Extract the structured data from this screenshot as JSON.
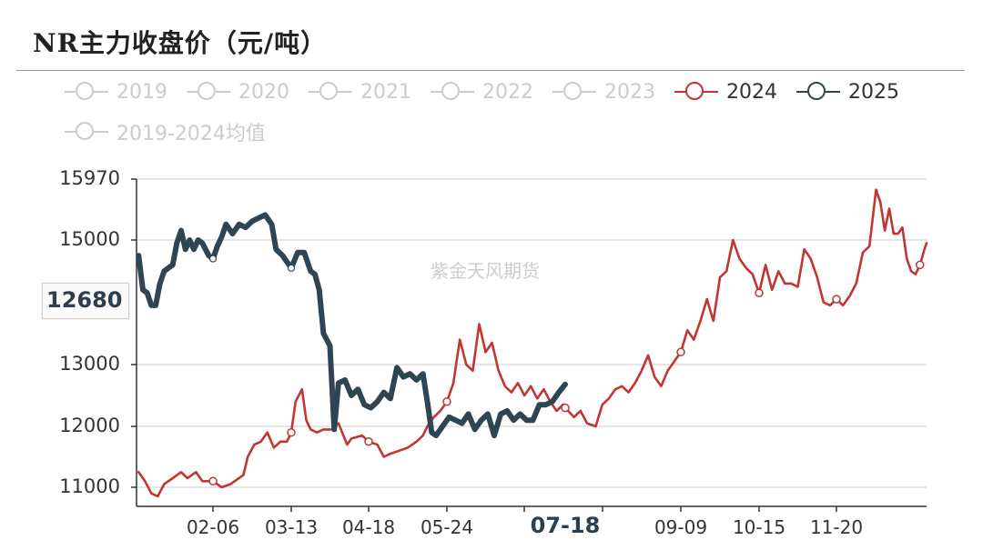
{
  "title": "NR主力收盘价（元/吨）",
  "watermark": "紫金天风期货",
  "y_pointer_label": "12680",
  "legend": [
    {
      "name": "2019",
      "color": "#cccccc",
      "active": false
    },
    {
      "name": "2020",
      "color": "#cccccc",
      "active": false
    },
    {
      "name": "2021",
      "color": "#cccccc",
      "active": false
    },
    {
      "name": "2022",
      "color": "#cccccc",
      "active": false
    },
    {
      "name": "2023",
      "color": "#cccccc",
      "active": false
    },
    {
      "name": "2024",
      "color": "#c23531",
      "active": true
    },
    {
      "name": "2025",
      "color": "#2f4554",
      "active": true
    },
    {
      "name": "2019-2024均值",
      "color": "#cccccc",
      "active": false
    }
  ],
  "y_ticks": [
    "15970",
    "15000",
    "13000",
    "12000",
    "11000"
  ],
  "x_ticks": [
    {
      "label": "02-06",
      "highlight": false
    },
    {
      "label": "03-13",
      "highlight": false
    },
    {
      "label": "04-18",
      "highlight": false
    },
    {
      "label": "05-24",
      "highlight": false
    },
    {
      "label": "07-18",
      "highlight": true
    },
    {
      "label": "09-09",
      "highlight": false
    },
    {
      "label": "10-15",
      "highlight": false
    },
    {
      "label": "11-20",
      "highlight": false
    }
  ],
  "chart_data": {
    "type": "line",
    "title": "NR主力收盘价（元/吨）",
    "y_ticks": [
      11000,
      12000,
      13000,
      15000,
      15970
    ],
    "y_tick_note": "category-style axis: 11000,12000,13000 evenly spaced, then 15000, then 15970",
    "x_tick_labels": [
      "02-06",
      "03-13",
      "04-18",
      "05-24",
      "07-18",
      "09-09",
      "10-15",
      "11-20"
    ],
    "legend_position": "top",
    "grid": true,
    "series": [
      {
        "name": "2024",
        "color": "#c23531",
        "points": [
          [
            "01-02",
            11250
          ],
          [
            "01-05",
            11100
          ],
          [
            "01-08",
            10900
          ],
          [
            "01-11",
            10850
          ],
          [
            "01-14",
            11050
          ],
          [
            "01-18",
            11150
          ],
          [
            "01-22",
            11250
          ],
          [
            "01-25",
            11150
          ],
          [
            "01-29",
            11250
          ],
          [
            "02-01",
            11100
          ],
          [
            "02-06",
            11100
          ],
          [
            "02-10",
            11000
          ],
          [
            "02-14",
            11050
          ],
          [
            "02-20",
            11200
          ],
          [
            "02-22",
            11500
          ],
          [
            "02-25",
            11700
          ],
          [
            "02-28",
            11750
          ],
          [
            "03-02",
            11900
          ],
          [
            "03-05",
            11650
          ],
          [
            "03-08",
            11750
          ],
          [
            "03-11",
            11750
          ],
          [
            "03-13",
            11900
          ],
          [
            "03-15",
            12400
          ],
          [
            "03-18",
            12600
          ],
          [
            "03-20",
            12100
          ],
          [
            "03-22",
            11950
          ],
          [
            "03-25",
            11900
          ],
          [
            "03-28",
            11950
          ],
          [
            "04-01",
            11950
          ],
          [
            "04-04",
            12050
          ],
          [
            "04-08",
            11700
          ],
          [
            "04-10",
            11800
          ],
          [
            "04-15",
            11850
          ],
          [
            "04-18",
            11750
          ],
          [
            "04-22",
            11700
          ],
          [
            "04-25",
            11500
          ],
          [
            "04-28",
            11550
          ],
          [
            "05-02",
            11600
          ],
          [
            "05-06",
            11650
          ],
          [
            "05-10",
            11750
          ],
          [
            "05-13",
            11850
          ],
          [
            "05-15",
            12000
          ],
          [
            "05-18",
            12150
          ],
          [
            "05-21",
            12250
          ],
          [
            "05-24",
            12400
          ],
          [
            "05-27",
            12700
          ],
          [
            "05-30",
            13400
          ],
          [
            "06-02",
            13000
          ],
          [
            "06-05",
            12900
          ],
          [
            "06-08",
            13650
          ],
          [
            "06-11",
            13200
          ],
          [
            "06-14",
            13350
          ],
          [
            "06-17",
            12900
          ],
          [
            "06-20",
            12650
          ],
          [
            "06-23",
            12550
          ],
          [
            "06-26",
            12700
          ],
          [
            "06-29",
            12500
          ],
          [
            "07-02",
            12650
          ],
          [
            "07-05",
            12450
          ],
          [
            "07-08",
            12600
          ],
          [
            "07-11",
            12400
          ],
          [
            "07-14",
            12250
          ],
          [
            "07-17",
            12350
          ],
          [
            "07-18",
            12300
          ],
          [
            "07-22",
            12150
          ],
          [
            "07-25",
            12250
          ],
          [
            "07-28",
            12050
          ],
          [
            "08-01",
            12000
          ],
          [
            "08-04",
            12350
          ],
          [
            "08-07",
            12450
          ],
          [
            "08-10",
            12600
          ],
          [
            "08-13",
            12650
          ],
          [
            "08-16",
            12550
          ],
          [
            "08-19",
            12700
          ],
          [
            "08-22",
            12900
          ],
          [
            "08-25",
            13150
          ],
          [
            "08-28",
            12800
          ],
          [
            "08-31",
            12650
          ],
          [
            "09-03",
            12900
          ],
          [
            "09-06",
            13050
          ],
          [
            "09-09",
            13200
          ],
          [
            "09-12",
            13550
          ],
          [
            "09-15",
            13400
          ],
          [
            "09-18",
            13700
          ],
          [
            "09-21",
            14050
          ],
          [
            "09-24",
            13700
          ],
          [
            "09-27",
            14400
          ],
          [
            "09-30",
            14500
          ],
          [
            "10-03",
            15000
          ],
          [
            "10-06",
            14700
          ],
          [
            "10-09",
            14550
          ],
          [
            "10-12",
            14450
          ],
          [
            "10-15",
            14150
          ],
          [
            "10-18",
            14600
          ],
          [
            "10-21",
            14200
          ],
          [
            "10-24",
            14500
          ],
          [
            "10-27",
            14300
          ],
          [
            "10-30",
            14300
          ],
          [
            "11-02",
            14250
          ],
          [
            "11-05",
            14850
          ],
          [
            "11-08",
            14700
          ],
          [
            "11-11",
            14400
          ],
          [
            "11-14",
            14000
          ],
          [
            "11-17",
            13950
          ],
          [
            "11-20",
            14050
          ],
          [
            "11-23",
            13950
          ],
          [
            "11-26",
            14100
          ],
          [
            "11-29",
            14300
          ],
          [
            "12-02",
            14800
          ],
          [
            "12-05",
            14900
          ],
          [
            "12-08",
            15800
          ],
          [
            "12-10",
            15600
          ],
          [
            "12-12",
            15150
          ],
          [
            "12-14",
            15500
          ],
          [
            "12-16",
            15100
          ],
          [
            "12-18",
            15100
          ],
          [
            "12-20",
            15200
          ],
          [
            "12-22",
            14700
          ],
          [
            "12-24",
            14500
          ],
          [
            "12-26",
            14450
          ],
          [
            "12-28",
            14600
          ],
          [
            "12-30",
            14850
          ],
          [
            "12-31",
            14950
          ]
        ]
      },
      {
        "name": "2025",
        "color": "#2f4554",
        "points": [
          [
            "01-02",
            14750
          ],
          [
            "01-04",
            14200
          ],
          [
            "01-06",
            14150
          ],
          [
            "01-08",
            13950
          ],
          [
            "01-10",
            13950
          ],
          [
            "01-12",
            14300
          ],
          [
            "01-14",
            14500
          ],
          [
            "01-16",
            14550
          ],
          [
            "01-18",
            14600
          ],
          [
            "01-20",
            14950
          ],
          [
            "01-22",
            15150
          ],
          [
            "01-24",
            14850
          ],
          [
            "01-26",
            15000
          ],
          [
            "01-28",
            14850
          ],
          [
            "01-30",
            15000
          ],
          [
            "02-01",
            14950
          ],
          [
            "02-04",
            14750
          ],
          [
            "02-06",
            14700
          ],
          [
            "02-08",
            14900
          ],
          [
            "02-10",
            15050
          ],
          [
            "02-12",
            15250
          ],
          [
            "02-15",
            15100
          ],
          [
            "02-18",
            15250
          ],
          [
            "02-21",
            15200
          ],
          [
            "02-24",
            15300
          ],
          [
            "02-27",
            15350
          ],
          [
            "03-01",
            15400
          ],
          [
            "03-04",
            15250
          ],
          [
            "03-06",
            14850
          ],
          [
            "03-09",
            14750
          ],
          [
            "03-11",
            14650
          ],
          [
            "03-13",
            14550
          ],
          [
            "03-16",
            14800
          ],
          [
            "03-19",
            14800
          ],
          [
            "03-22",
            14500
          ],
          [
            "03-24",
            14450
          ],
          [
            "03-26",
            14200
          ],
          [
            "03-28",
            13500
          ],
          [
            "03-31",
            13300
          ],
          [
            "04-02",
            11950
          ],
          [
            "04-04",
            12700
          ],
          [
            "04-07",
            12750
          ],
          [
            "04-10",
            12500
          ],
          [
            "04-13",
            12600
          ],
          [
            "04-16",
            12350
          ],
          [
            "04-19",
            12300
          ],
          [
            "04-22",
            12400
          ],
          [
            "04-25",
            12550
          ],
          [
            "04-28",
            12450
          ],
          [
            "05-01",
            12950
          ],
          [
            "05-04",
            12800
          ],
          [
            "05-07",
            12850
          ],
          [
            "05-10",
            12750
          ],
          [
            "05-13",
            12850
          ],
          [
            "05-15",
            12400
          ],
          [
            "05-17",
            11900
          ],
          [
            "05-19",
            11850
          ],
          [
            "05-22",
            12000
          ],
          [
            "05-25",
            12150
          ],
          [
            "05-28",
            12100
          ],
          [
            "05-31",
            12050
          ],
          [
            "06-03",
            12200
          ],
          [
            "06-06",
            11950
          ],
          [
            "06-09",
            12100
          ],
          [
            "06-12",
            12200
          ],
          [
            "06-15",
            11850
          ],
          [
            "06-18",
            12200
          ],
          [
            "06-21",
            12250
          ],
          [
            "06-24",
            12100
          ],
          [
            "06-27",
            12200
          ],
          [
            "06-30",
            12100
          ],
          [
            "07-03",
            12100
          ],
          [
            "07-06",
            12350
          ],
          [
            "07-09",
            12350
          ],
          [
            "07-12",
            12400
          ],
          [
            "07-15",
            12550
          ],
          [
            "07-18",
            12680
          ]
        ]
      }
    ]
  }
}
